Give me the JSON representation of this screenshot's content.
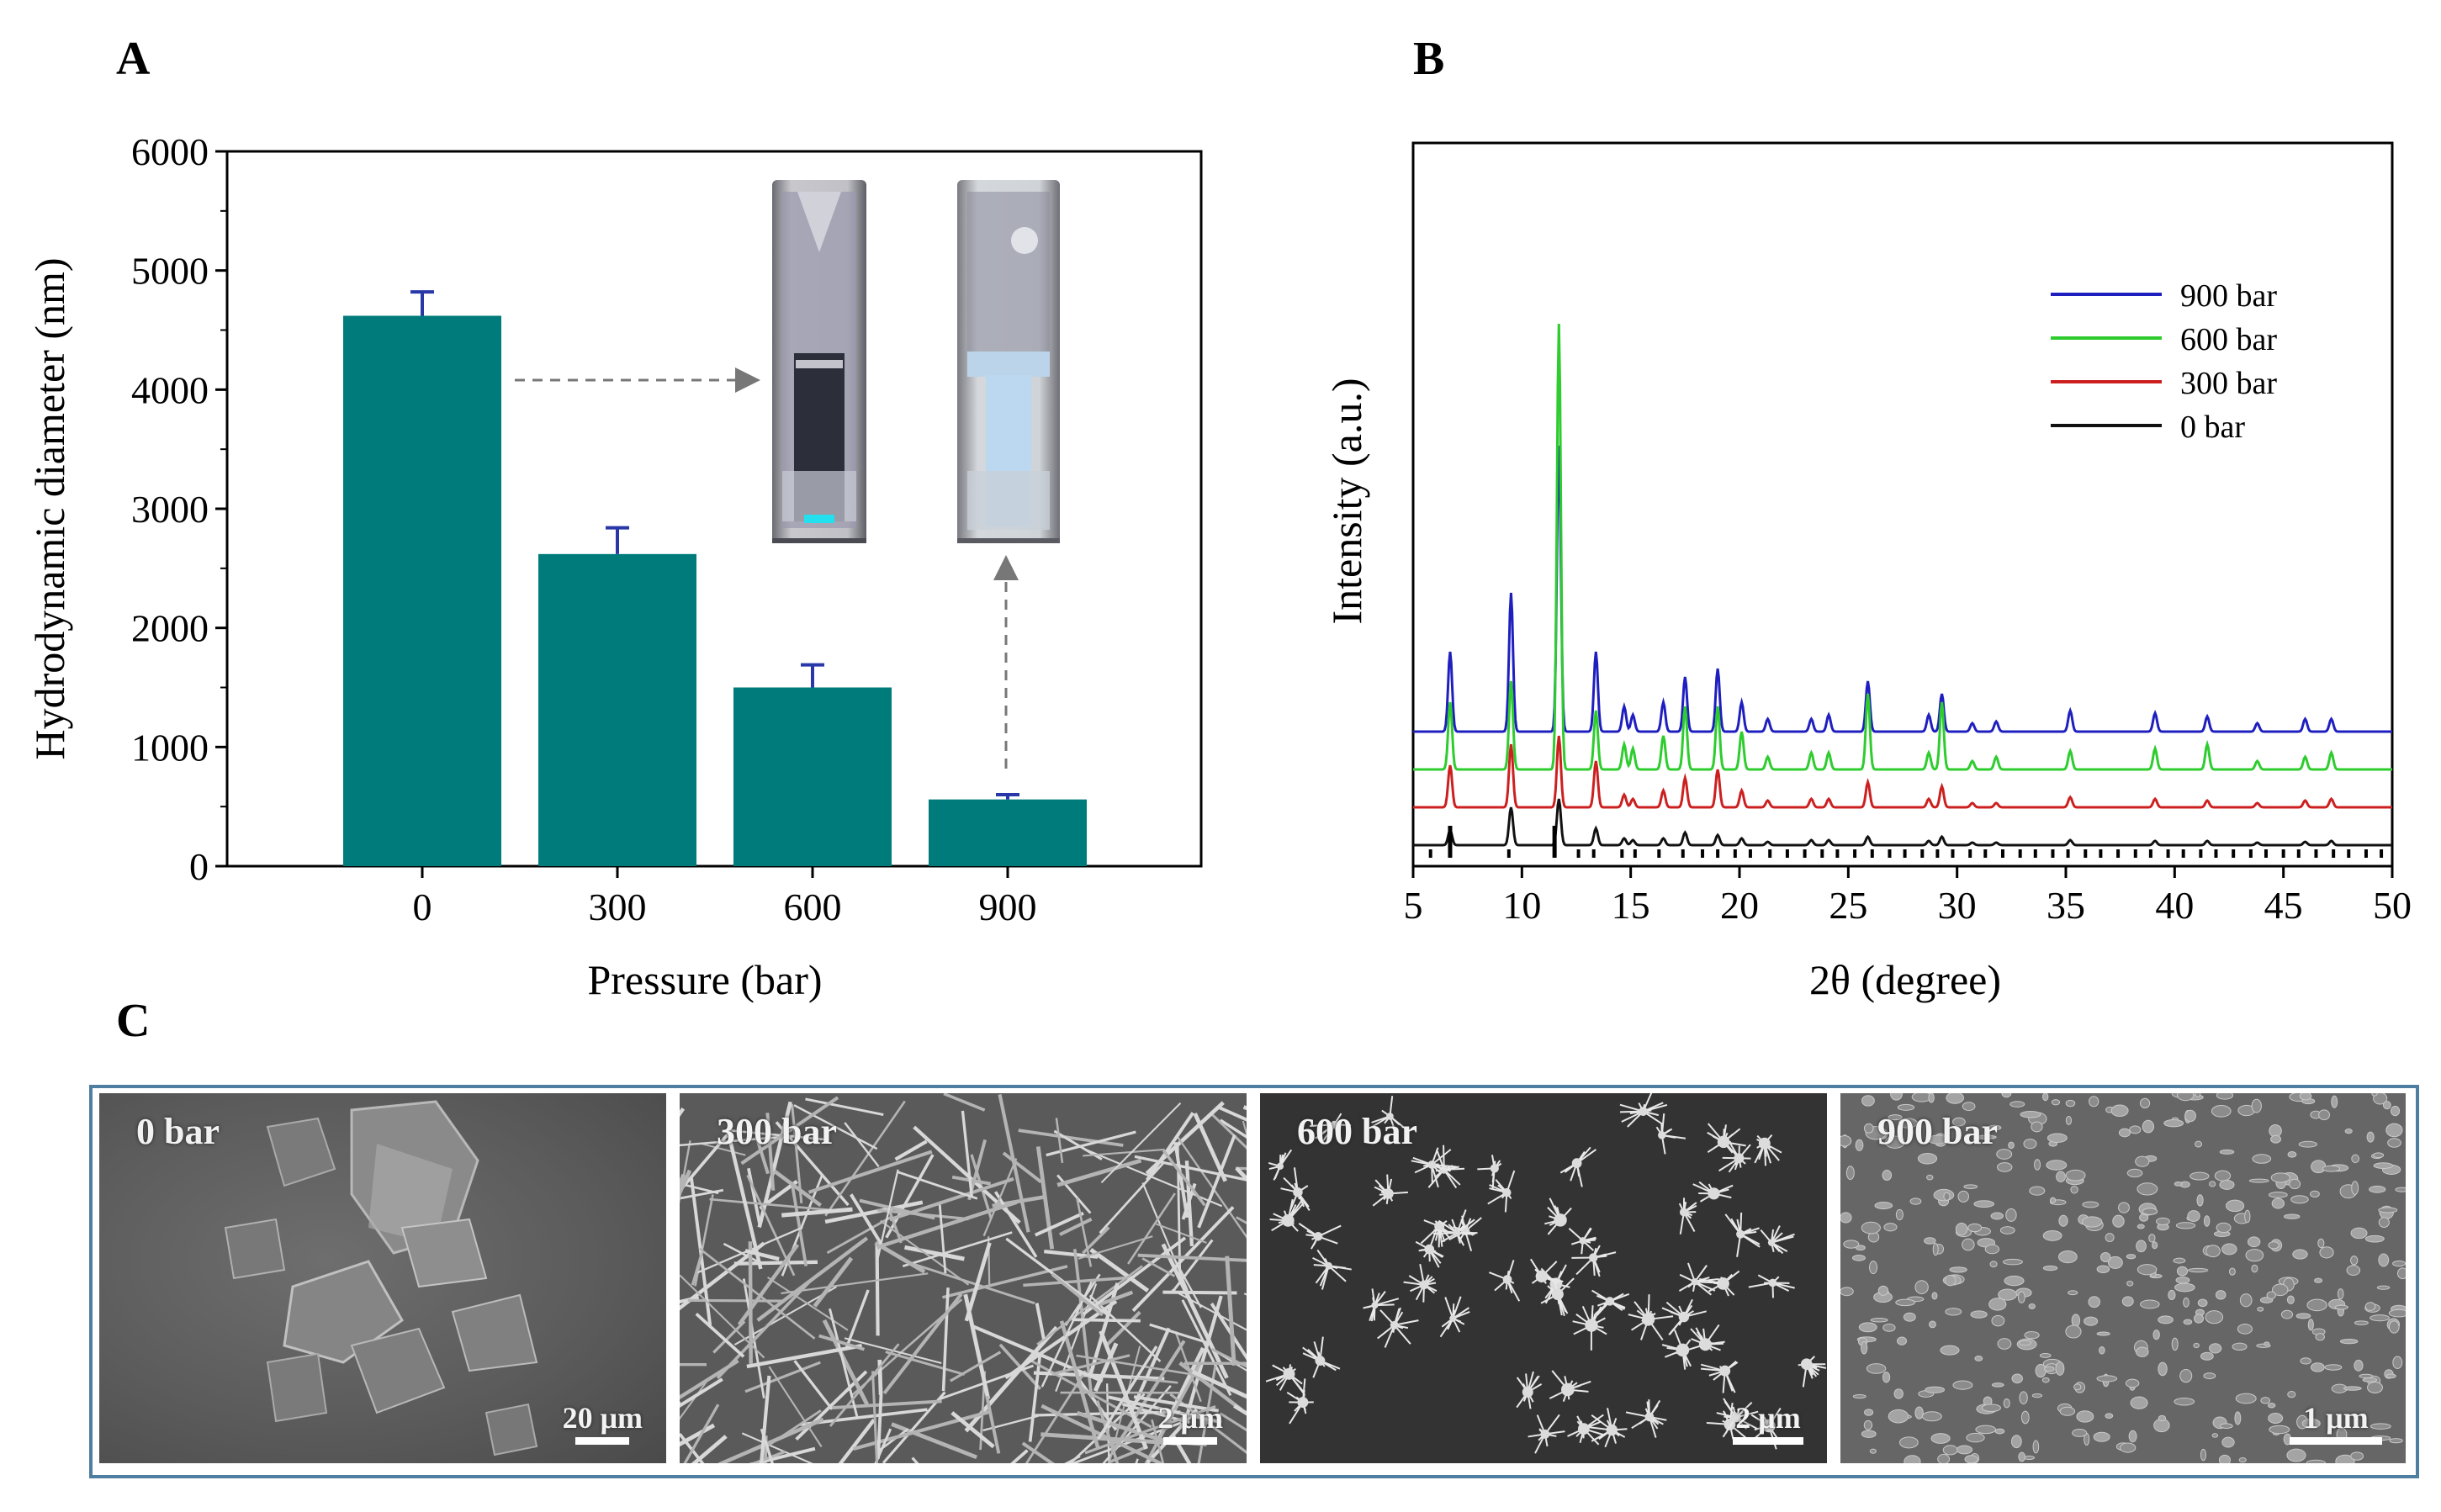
{
  "panels": {
    "a": "A",
    "b": "B",
    "c": "C"
  },
  "chart_data": [
    {
      "type": "bar",
      "panel": "A",
      "categories": [
        "0",
        "300",
        "600",
        "900"
      ],
      "values": [
        4620,
        2620,
        1500,
        560
      ],
      "errors": [
        200,
        220,
        190,
        40
      ],
      "ylim": [
        0,
        6000
      ],
      "yticks": [
        0,
        1000,
        2000,
        3000,
        4000,
        5000,
        6000
      ],
      "xlabel": "Pressure (bar)",
      "ylabel": "Hydrodynamic diameter (nm)",
      "bar_color": "#007b7b",
      "error_color": "#2838a8",
      "inset": "two cuvette photographs: 0 bar suspension (arrow from bar 0) and 900 bar suspension (arrow from bar 900)"
    },
    {
      "type": "line",
      "panel": "B",
      "xlabel": "2θ (degree)",
      "ylabel": "Intensity (a.u.)",
      "xlim": [
        5,
        50
      ],
      "xticks": [
        5,
        10,
        15,
        20,
        25,
        30,
        35,
        40,
        45,
        50
      ],
      "legend_position": "top-right",
      "peaks_2theta": [
        6.7,
        9.5,
        11.7,
        13.4,
        14.7,
        15.1,
        16.5,
        17.5,
        19.0,
        20.1,
        21.3,
        23.3,
        24.1,
        25.9,
        28.7,
        29.3,
        30.7,
        31.8,
        35.2,
        39.1,
        41.5,
        43.8,
        46.0,
        47.2
      ],
      "series": [
        {
          "name": "900 bar",
          "color": "#1f1fbf",
          "baseline": 1.0,
          "peak_heights": [
            0.95,
            1.65,
            3.4,
            0.95,
            0.3,
            0.2,
            0.35,
            0.65,
            0.75,
            0.35,
            0.15,
            0.15,
            0.2,
            0.6,
            0.2,
            0.45,
            0.1,
            0.12,
            0.25,
            0.22,
            0.18,
            0.1,
            0.15,
            0.15
          ]
        },
        {
          "name": "600 bar",
          "color": "#2ecc2e",
          "baseline": 0.55,
          "peak_heights": [
            0.8,
            1.05,
            5.3,
            0.7,
            0.3,
            0.25,
            0.4,
            0.75,
            0.75,
            0.45,
            0.15,
            0.2,
            0.2,
            0.9,
            0.2,
            0.8,
            0.1,
            0.15,
            0.22,
            0.25,
            0.3,
            0.1,
            0.15,
            0.2
          ]
        },
        {
          "name": "300 bar",
          "color": "#cc2020",
          "baseline": 0.1,
          "peak_heights": [
            0.5,
            0.75,
            0.85,
            0.55,
            0.15,
            0.1,
            0.2,
            0.35,
            0.45,
            0.2,
            0.08,
            0.1,
            0.1,
            0.3,
            0.1,
            0.25,
            0.05,
            0.05,
            0.12,
            0.1,
            0.08,
            0.05,
            0.08,
            0.1
          ]
        },
        {
          "name": "0 bar",
          "color": "#111111",
          "baseline": -0.35,
          "peak_heights": [
            0.18,
            0.45,
            0.55,
            0.2,
            0.08,
            0.06,
            0.08,
            0.15,
            0.12,
            0.08,
            0.04,
            0.06,
            0.06,
            0.1,
            0.05,
            0.1,
            0.03,
            0.03,
            0.06,
            0.05,
            0.05,
            0.03,
            0.04,
            0.05
          ]
        }
      ],
      "reference_2theta": [
        5.8,
        6.7,
        9.4,
        11.5,
        12.6,
        13.3,
        14.6,
        15.2,
        16.3,
        17.4,
        18.3,
        19.0,
        19.8,
        20.5,
        21.4,
        22.2,
        23.0,
        23.8,
        24.5,
        25.3,
        26.1,
        26.9,
        27.6,
        28.4,
        29.1,
        29.8,
        30.6,
        31.3,
        32.1,
        32.9,
        33.6,
        34.4,
        35.1,
        35.9,
        36.6,
        37.4,
        38.2,
        38.9,
        39.7,
        40.4,
        41.2,
        41.9,
        42.7,
        43.5,
        44.2,
        45.0,
        45.7,
        46.5,
        47.3,
        48.0,
        48.8,
        49.5
      ],
      "reference_strong": [
        6.7,
        11.5
      ]
    }
  ],
  "sem_images": [
    {
      "label": "0 bar",
      "scale": "20 μm"
    },
    {
      "label": "300 bar",
      "scale": "2 μm"
    },
    {
      "label": "600 bar",
      "scale": "2 μm"
    },
    {
      "label": "900 bar",
      "scale": "1 μm"
    }
  ]
}
